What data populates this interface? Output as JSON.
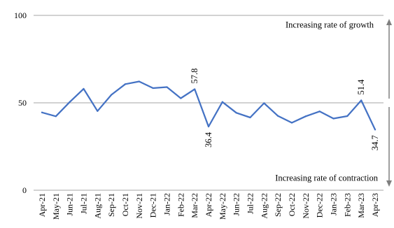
{
  "chart_data": {
    "type": "line",
    "title": "",
    "xlabel": "",
    "ylabel": "",
    "ylim": [
      0,
      100
    ],
    "yticks": [
      0,
      50,
      100
    ],
    "grid": "horizontal",
    "categories": [
      "Apr-21",
      "May-21",
      "Jun-21",
      "Jul-21",
      "Aug-21",
      "Sep-21",
      "Oct-21",
      "Nov-21",
      "Dec-21",
      "Jan-22",
      "Feb-22",
      "Mar-22",
      "Apr-22",
      "May-22",
      "Jun-22",
      "Jul-22",
      "Aug-22",
      "Sep-22",
      "Oct-22",
      "Nov-22",
      "Dec-22",
      "Jan-23",
      "Feb-23",
      "Mar-23",
      "Apr-23"
    ],
    "series": [
      {
        "values": [
          44.5,
          42.3,
          50.5,
          58.0,
          45.3,
          54.6,
          60.7,
          62.2,
          58.4,
          59.0,
          52.6,
          57.8,
          36.4,
          50.5,
          44.3,
          41.6,
          49.8,
          42.5,
          38.6,
          42.3,
          45.1,
          41.0,
          42.4,
          51.4,
          34.7
        ],
        "color": "#4472C4"
      }
    ],
    "data_labels": [
      {
        "category": "Mar-22",
        "text": "57.8"
      },
      {
        "category": "Apr-22",
        "text": "36.4"
      },
      {
        "category": "Mar-23",
        "text": "51.4"
      },
      {
        "category": "Apr-23",
        "text": "34.7"
      }
    ],
    "annotations": {
      "top": "Increasing rate of growth",
      "bottom": "Increasing rate of contraction"
    },
    "arrow_color": "#7F7F7F",
    "grid_color": "#A6A6A6"
  }
}
